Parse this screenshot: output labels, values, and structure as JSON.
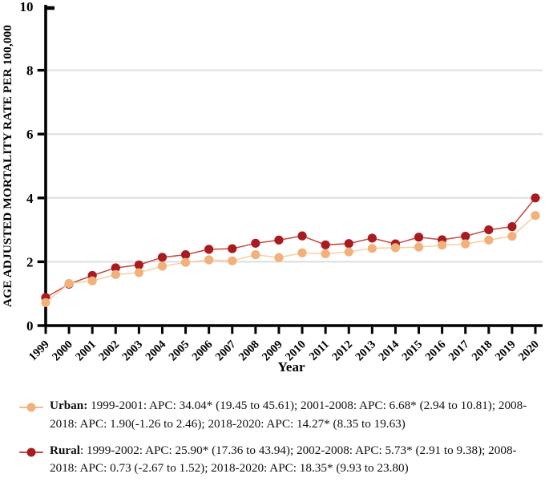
{
  "figure": {
    "background": "#ffffff"
  },
  "chart_data": {
    "type": "line",
    "title": "",
    "xlabel": "Year",
    "ylabel": "AGE ADJUSTED MORTALITY RATE PER 100,000",
    "ylim": [
      0,
      10
    ],
    "yticks": [
      0,
      2,
      4,
      6,
      8,
      10
    ],
    "gridlines_at": [
      2,
      4,
      6,
      8
    ],
    "grid_color": "#dedede",
    "axis_color": "#000000",
    "legend_position": "bottom",
    "categories": [
      "1999",
      "2000",
      "2001",
      "2002",
      "2003",
      "2004",
      "2005",
      "2006",
      "2007",
      "2008",
      "2009",
      "2010",
      "2011",
      "2012",
      "2013",
      "2014",
      "2015",
      "2016",
      "2017",
      "2018",
      "2019",
      "2020"
    ],
    "series": [
      {
        "name": "Urban",
        "marker_color": "#F2B17A",
        "line_color": "#F4CFA3",
        "values": [
          0.72,
          1.32,
          1.4,
          1.6,
          1.66,
          1.86,
          1.98,
          2.06,
          2.03,
          2.22,
          2.13,
          2.28,
          2.25,
          2.31,
          2.42,
          2.44,
          2.46,
          2.52,
          2.56,
          2.68,
          2.8,
          3.45
        ]
      },
      {
        "name": "Rural",
        "marker_color": "#A91B20",
        "line_color": "#C4483C",
        "values": [
          0.88,
          1.3,
          1.57,
          1.81,
          1.9,
          2.14,
          2.22,
          2.39,
          2.41,
          2.58,
          2.68,
          2.81,
          2.53,
          2.57,
          2.74,
          2.56,
          2.77,
          2.69,
          2.8,
          3.0,
          3.1,
          4.0
        ]
      }
    ]
  },
  "legend": {
    "entries": [
      {
        "id": "urban",
        "label": "Urban:",
        "text": " 1999-2001: APC: 34.04* (19.45 to 45.61); 2001-2008: APC: 6.68* (2.94 to 10.81); 2008-2018: APC: 1.90(-1.26 to 2.46); 2018-2020: APC: 14.27* (8.35 to 19.63)",
        "marker_color": "#F2B17A",
        "line_color": "#F0BC8C"
      },
      {
        "id": "rural",
        "label": "Rural",
        "text": ": 1999-2002: APC: 25.90* (17.36 to 43.94); 2002-2008: APC: 5.73* (2.91 to 9.38); 2008-2018: APC: 0.73 (-2.67 to 1.52); 2018-2020: APC: 18.35* (9.93 to 23.80)",
        "marker_color": "#A91B20",
        "line_color": "#C4483C"
      }
    ]
  }
}
